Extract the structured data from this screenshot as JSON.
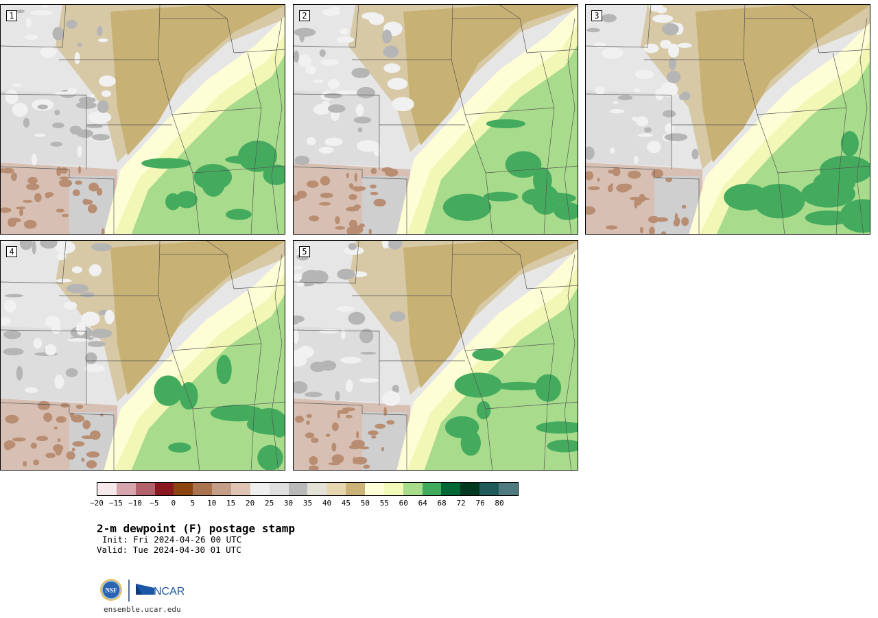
{
  "panels": [
    {
      "label": "1"
    },
    {
      "label": "2"
    },
    {
      "label": "3"
    },
    {
      "label": "4"
    },
    {
      "label": "5"
    }
  ],
  "colorbar": {
    "colors": [
      "#f6e9ec",
      "#d6a5ad",
      "#b3616a",
      "#8a1821",
      "#8c4511",
      "#ab7451",
      "#c49e86",
      "#e0c4b3",
      "#efefef",
      "#dfdfdf",
      "#b9b9b9",
      "#e4e2d6",
      "#e6d7b1",
      "#cbb377",
      "#fefed9",
      "#f3f9b8",
      "#a7dc8b",
      "#41ab5d",
      "#006837",
      "#00391f",
      "#1f5a5a",
      "#4f7a80"
    ],
    "tick_labels": [
      "−20",
      "−15",
      "−10",
      "−5",
      "0",
      "5",
      "10",
      "15",
      "20",
      "25",
      "30",
      "35",
      "40",
      "45",
      "50",
      "55",
      "60",
      "64",
      "68",
      "72",
      "76",
      "80"
    ]
  },
  "title": "2-m dewpoint (F) postage stamp",
  "init_text": "Init: Fri 2024-04-26 00 UTC",
  "valid_text": "Valid: Tue 2024-04-30 01 UTC",
  "logos": {
    "nsf": "NSF",
    "ncar": "NCAR"
  },
  "site_url": "ensemble.ucar.edu"
}
